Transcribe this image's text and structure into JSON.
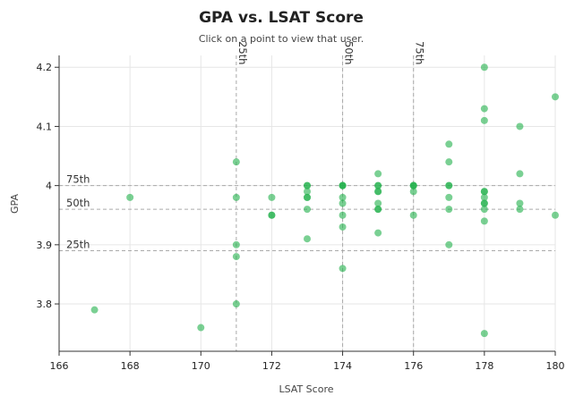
{
  "chart_data": {
    "type": "scatter",
    "title": "GPA vs. LSAT Score",
    "subtitle": "Click on a point to view that user.",
    "xlabel": "LSAT Score",
    "ylabel": "GPA",
    "xlim": [
      166,
      180
    ],
    "ylim": [
      3.72,
      4.22
    ],
    "x_ticks": [
      166,
      168,
      170,
      172,
      174,
      176,
      178,
      180
    ],
    "y_ticks": [
      3.8,
      3.9,
      4,
      4.1,
      4.2
    ],
    "x_tick_labels": [
      "166",
      "168",
      "170",
      "172",
      "174",
      "176",
      "178",
      "180"
    ],
    "y_tick_labels": [
      "3.8",
      "3.9",
      "4",
      "4.1",
      "4.2"
    ],
    "grid": true,
    "point_color": "#22b04b",
    "percentiles_lsat": [
      {
        "label": "25th",
        "value": 171
      },
      {
        "label": "50th",
        "value": 174
      },
      {
        "label": "75th",
        "value": 176
      }
    ],
    "percentiles_gpa": [
      {
        "label": "75th",
        "value": 4.0
      },
      {
        "label": "50th",
        "value": 3.96
      },
      {
        "label": "25th",
        "value": 3.89
      }
    ],
    "points": [
      [
        167,
        3.79
      ],
      [
        168,
        3.98
      ],
      [
        170,
        3.76
      ],
      [
        171,
        4.04
      ],
      [
        171,
        3.98
      ],
      [
        171,
        3.9
      ],
      [
        171,
        3.88
      ],
      [
        171,
        3.8
      ],
      [
        172,
        3.98
      ],
      [
        172,
        3.95
      ],
      [
        172,
        3.95
      ],
      [
        173,
        4.0
      ],
      [
        173,
        4.0
      ],
      [
        173,
        3.99
      ],
      [
        173,
        3.98
      ],
      [
        173,
        3.98
      ],
      [
        173,
        3.96
      ],
      [
        173,
        3.91
      ],
      [
        174,
        4.0
      ],
      [
        174,
        4.0
      ],
      [
        174,
        4.0
      ],
      [
        174,
        3.98
      ],
      [
        174,
        3.97
      ],
      [
        174,
        3.95
      ],
      [
        174,
        3.93
      ],
      [
        174,
        3.86
      ],
      [
        175,
        4.02
      ],
      [
        175,
        4.0
      ],
      [
        175,
        4.0
      ],
      [
        175,
        3.99
      ],
      [
        175,
        3.99
      ],
      [
        175,
        3.97
      ],
      [
        175,
        3.96
      ],
      [
        175,
        3.96
      ],
      [
        175,
        3.92
      ],
      [
        176,
        4.0
      ],
      [
        176,
        4.0
      ],
      [
        176,
        4.0
      ],
      [
        176,
        3.99
      ],
      [
        176,
        3.95
      ],
      [
        177,
        4.07
      ],
      [
        177,
        4.04
      ],
      [
        177,
        4.0
      ],
      [
        177,
        4.0
      ],
      [
        177,
        3.98
      ],
      [
        177,
        3.96
      ],
      [
        177,
        3.9
      ],
      [
        178,
        4.2
      ],
      [
        178,
        4.13
      ],
      [
        178,
        4.11
      ],
      [
        178,
        3.99
      ],
      [
        178,
        3.99
      ],
      [
        178,
        3.98
      ],
      [
        178,
        3.97
      ],
      [
        178,
        3.97
      ],
      [
        178,
        3.96
      ],
      [
        178,
        3.94
      ],
      [
        178,
        3.75
      ],
      [
        179,
        4.1
      ],
      [
        179,
        4.02
      ],
      [
        179,
        3.97
      ],
      [
        179,
        3.96
      ],
      [
        180,
        4.15
      ],
      [
        180,
        3.95
      ]
    ]
  }
}
